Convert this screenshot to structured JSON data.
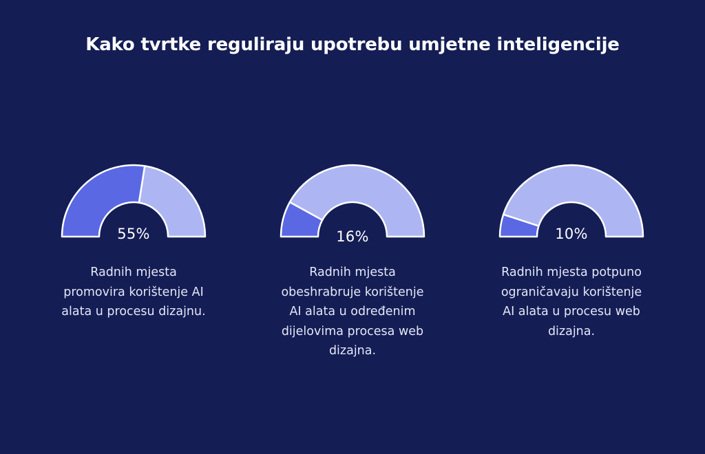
{
  "colors": {
    "background": "#141d54",
    "share": "#5a68e3",
    "rest": "#adb6f2",
    "outline": "#ffffff"
  },
  "chart_data": {
    "type": "gauge",
    "title": "Kako tvrtke reguliraju upotrebu umjetne inteligencije",
    "unit": "%",
    "items": [
      {
        "value": 55,
        "label": "55%",
        "description": "Radnih mjesta promovira korištenje AI alata u procesu dizajnu.",
        "description_lines": [
          "Radnih mjesta",
          "promovira korištenje AI",
          "alata u procesu dizajnu."
        ]
      },
      {
        "value": 16,
        "label": "16%",
        "description": "Radnih mjesta obeshrabruje korištenje AI alata u određenim dijelovima procesa web dizajna.",
        "description_lines": [
          "Radnih mjesta",
          "obeshrabruje korištenje",
          "AI alata u određenim",
          "dijelovima procesa web",
          "dizajna."
        ]
      },
      {
        "value": 10,
        "label": "10%",
        "description": "Radnih mjesta potpuno ograničavaju korištenje AI alata u procesu web dizajna.",
        "description_lines": [
          "Radnih mjesta potpuno",
          "ograničavaju korištenje",
          "AI alata u procesu web",
          "dizajna."
        ]
      }
    ]
  }
}
